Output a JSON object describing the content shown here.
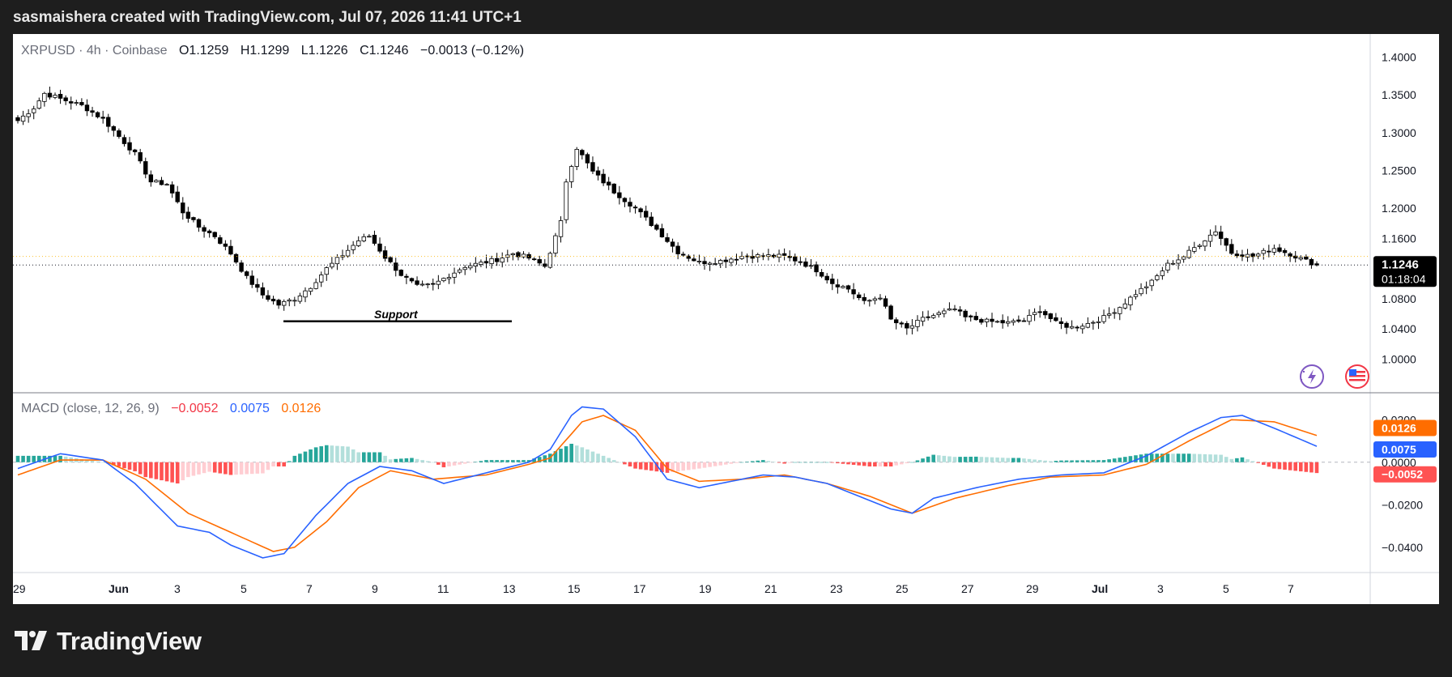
{
  "header": {
    "credit": "sasmaishera created with TradingView.com, Jul 07, 2026 11:41 UTC+1"
  },
  "legend": {
    "symbol": "XRPUSD · 4h · Coinbase",
    "o_label": "O",
    "o": "1.1259",
    "h_label": "H",
    "h": "1.1299",
    "l_label": "L",
    "l": "1.1226",
    "c_label": "C",
    "c": "1.1246",
    "change": "−0.0013 (−0.12%)"
  },
  "macd_legend": {
    "label": "MACD (close, 12, 26, 9)",
    "hist": "−0.0052",
    "macd": "0.0075",
    "signal": "0.0126"
  },
  "price_axis": [
    "1.4000",
    "1.3500",
    "1.3000",
    "1.2500",
    "1.2000",
    "1.1600",
    "1.1200",
    "1.0800",
    "1.0400",
    "1.0000"
  ],
  "macd_axis": [
    "0.0200",
    "0.0000",
    "−0.0200",
    "−0.0400"
  ],
  "time_axis": [
    "29",
    "Jun",
    "3",
    "5",
    "7",
    "9",
    "11",
    "13",
    "15",
    "17",
    "19",
    "21",
    "23",
    "25",
    "27",
    "29",
    "Jul",
    "3",
    "5",
    "7"
  ],
  "last_price": {
    "value": "1.1246",
    "countdown": "01:18:04"
  },
  "macd_badges": {
    "signal": "0.0126",
    "macd": "0.0075",
    "hist": "−0.0052"
  },
  "annotation": {
    "support_label": "Support"
  },
  "brand": {
    "name": "TradingView"
  },
  "colors": {
    "up": "#ffffff",
    "down": "#000000",
    "macd": "#2962ff",
    "signal": "#ff6d00",
    "hist_pos_strong": "#26a69a",
    "hist_pos_weak": "#b2dfdb",
    "hist_neg_strong": "#ff5252",
    "hist_neg_weak": "#ffcdd2",
    "last_price_bg": "#000000"
  },
  "chart_data": [
    {
      "type": "candlestick",
      "title": "XRPUSD · 4h · Coinbase",
      "x_ticks": [
        "29",
        "Jun",
        "3",
        "5",
        "7",
        "9",
        "11",
        "13",
        "15",
        "17",
        "19",
        "21",
        "23",
        "25",
        "27",
        "29",
        "Jul",
        "3",
        "5",
        "7"
      ],
      "ylim": [
        0.98,
        1.42
      ],
      "anchors_close": [
        [
          0,
          1.316
        ],
        [
          3,
          1.333
        ],
        [
          5,
          1.352
        ],
        [
          8,
          1.345
        ],
        [
          12,
          1.336
        ],
        [
          16,
          1.318
        ],
        [
          19,
          1.295
        ],
        [
          22,
          1.272
        ],
        [
          25,
          1.235
        ],
        [
          28,
          1.232
        ],
        [
          31,
          1.195
        ],
        [
          34,
          1.175
        ],
        [
          37,
          1.163
        ],
        [
          40,
          1.14
        ],
        [
          43,
          1.108
        ],
        [
          46,
          1.085
        ],
        [
          49,
          1.072
        ],
        [
          52,
          1.08
        ],
        [
          55,
          1.096
        ],
        [
          58,
          1.12
        ],
        [
          61,
          1.138
        ],
        [
          64,
          1.157
        ],
        [
          66,
          1.163
        ],
        [
          69,
          1.135
        ],
        [
          72,
          1.112
        ],
        [
          75,
          1.096
        ],
        [
          78,
          1.098
        ],
        [
          81,
          1.111
        ],
        [
          84,
          1.123
        ],
        [
          87,
          1.127
        ],
        [
          90,
          1.132
        ],
        [
          93,
          1.14
        ],
        [
          96,
          1.134
        ],
        [
          99,
          1.123
        ],
        [
          102,
          1.181
        ],
        [
          103,
          1.236
        ],
        [
          105,
          1.28
        ],
        [
          108,
          1.248
        ],
        [
          112,
          1.222
        ],
        [
          116,
          1.2
        ],
        [
          120,
          1.172
        ],
        [
          124,
          1.142
        ],
        [
          128,
          1.128
        ],
        [
          132,
          1.13
        ],
        [
          136,
          1.136
        ],
        [
          140,
          1.137
        ],
        [
          144,
          1.136
        ],
        [
          147,
          1.129
        ],
        [
          150,
          1.118
        ],
        [
          153,
          1.101
        ],
        [
          156,
          1.093
        ],
        [
          159,
          1.075
        ],
        [
          162,
          1.083
        ],
        [
          164,
          1.052
        ],
        [
          167,
          1.04
        ],
        [
          170,
          1.053
        ],
        [
          173,
          1.06
        ],
        [
          176,
          1.066
        ],
        [
          178,
          1.055
        ],
        [
          182,
          1.05
        ],
        [
          186,
          1.048
        ],
        [
          189,
          1.051
        ],
        [
          192,
          1.065
        ],
        [
          195,
          1.048
        ],
        [
          198,
          1.042
        ],
        [
          201,
          1.047
        ],
        [
          204,
          1.055
        ],
        [
          207,
          1.069
        ],
        [
          210,
          1.087
        ],
        [
          213,
          1.102
        ],
        [
          216,
          1.125
        ],
        [
          219,
          1.136
        ],
        [
          222,
          1.153
        ],
        [
          225,
          1.17
        ],
        [
          228,
          1.141
        ],
        [
          232,
          1.136
        ],
        [
          236,
          1.147
        ],
        [
          239,
          1.139
        ],
        [
          241,
          1.133
        ],
        [
          244,
          1.125
        ]
      ],
      "support_level": 1.05,
      "last_close": 1.1246,
      "macd": {
        "legend": "MACD (close, 12, 26, 9)",
        "ylim": [
          -0.05,
          0.03
        ],
        "macd_anchors": [
          [
            0,
            -0.003
          ],
          [
            8,
            0.004
          ],
          [
            16,
            0.001
          ],
          [
            22,
            -0.01
          ],
          [
            30,
            -0.03
          ],
          [
            36,
            -0.033
          ],
          [
            40,
            -0.039
          ],
          [
            46,
            -0.045
          ],
          [
            50,
            -0.043
          ],
          [
            56,
            -0.025
          ],
          [
            62,
            -0.01
          ],
          [
            68,
            -0.002
          ],
          [
            74,
            -0.004
          ],
          [
            80,
            -0.01
          ],
          [
            88,
            -0.005
          ],
          [
            96,
            0.0
          ],
          [
            100,
            0.006
          ],
          [
            104,
            0.022
          ],
          [
            106,
            0.026
          ],
          [
            110,
            0.025
          ],
          [
            116,
            0.012
          ],
          [
            122,
            -0.008
          ],
          [
            128,
            -0.012
          ],
          [
            134,
            -0.009
          ],
          [
            140,
            -0.006
          ],
          [
            146,
            -0.007
          ],
          [
            152,
            -0.01
          ],
          [
            158,
            -0.016
          ],
          [
            164,
            -0.022
          ],
          [
            168,
            -0.024
          ],
          [
            172,
            -0.017
          ],
          [
            180,
            -0.012
          ],
          [
            188,
            -0.008
          ],
          [
            196,
            -0.006
          ],
          [
            204,
            -0.005
          ],
          [
            212,
            0.003
          ],
          [
            220,
            0.014
          ],
          [
            226,
            0.021
          ],
          [
            230,
            0.022
          ],
          [
            236,
            0.016
          ],
          [
            244,
            0.0075
          ]
        ],
        "signal_anchors": [
          [
            0,
            -0.006
          ],
          [
            8,
            0.001
          ],
          [
            16,
            0.001
          ],
          [
            24,
            -0.008
          ],
          [
            32,
            -0.024
          ],
          [
            40,
            -0.033
          ],
          [
            48,
            -0.042
          ],
          [
            52,
            -0.04
          ],
          [
            58,
            -0.028
          ],
          [
            64,
            -0.012
          ],
          [
            70,
            -0.004
          ],
          [
            78,
            -0.008
          ],
          [
            88,
            -0.006
          ],
          [
            96,
            -0.001
          ],
          [
            100,
            0.002
          ],
          [
            106,
            0.019
          ],
          [
            110,
            0.022
          ],
          [
            116,
            0.015
          ],
          [
            122,
            -0.003
          ],
          [
            128,
            -0.009
          ],
          [
            136,
            -0.008
          ],
          [
            144,
            -0.006
          ],
          [
            152,
            -0.01
          ],
          [
            160,
            -0.016
          ],
          [
            168,
            -0.024
          ],
          [
            176,
            -0.017
          ],
          [
            186,
            -0.011
          ],
          [
            194,
            -0.007
          ],
          [
            204,
            -0.006
          ],
          [
            212,
            -0.001
          ],
          [
            220,
            0.01
          ],
          [
            228,
            0.02
          ],
          [
            236,
            0.019
          ],
          [
            244,
            0.0126
          ]
        ],
        "last_hist": -0.0052,
        "last_macd": 0.0075,
        "last_signal": 0.0126
      }
    }
  ]
}
